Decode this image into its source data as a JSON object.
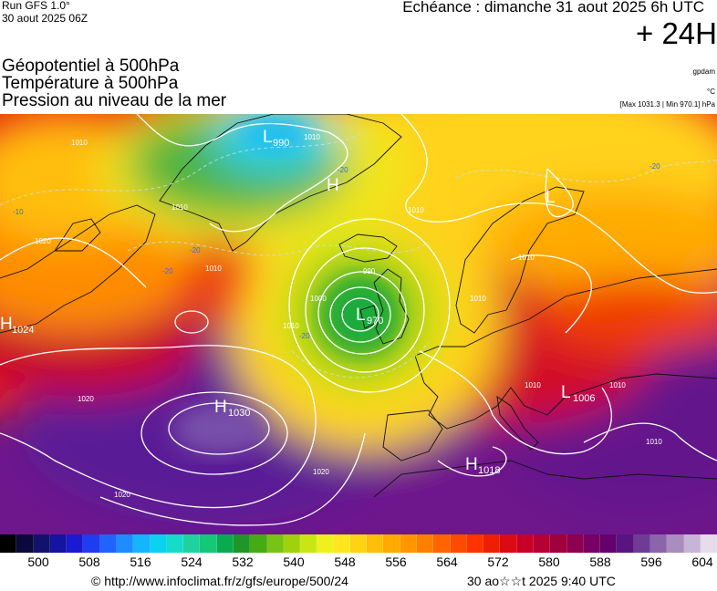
{
  "header": {
    "run": "Run GFS 1.0°",
    "run_date": "30 aout 2025 06Z",
    "echeance": "Echéance : dimanche 31 aout 2025 6h UTC",
    "lead": "+ 24H"
  },
  "titles": {
    "line1": "Géopotentiel à 500hPa",
    "line2": "Température à 500hPa",
    "line3": "Pression au niveau de la mer"
  },
  "units": {
    "geopotential": "gpdam",
    "temperature": "°C",
    "maxmin": "[Max 1031.3 | Min 970.1] hPa"
  },
  "colorbar": {
    "tick_labels": [
      "500",
      "508",
      "516",
      "524",
      "532",
      "540",
      "548",
      "556",
      "564",
      "572",
      "580",
      "588",
      "596",
      "604"
    ],
    "colors": [
      "#000000",
      "#0a0a3a",
      "#12126e",
      "#1414a0",
      "#1a1ad2",
      "#1e3cf0",
      "#2064ff",
      "#1e8cff",
      "#14b4ff",
      "#0ad2f0",
      "#14dcc8",
      "#1ed2a0",
      "#14c878",
      "#0aaa50",
      "#1e9628",
      "#46aa14",
      "#78c314",
      "#a0d20a",
      "#c8e614",
      "#f0f01e",
      "#ffe61e",
      "#ffd214",
      "#ffbe0a",
      "#ffaa00",
      "#ff9600",
      "#ff7f00",
      "#ff6400",
      "#ff4b00",
      "#ff3200",
      "#f01e00",
      "#dc0a14",
      "#c80028",
      "#b40032",
      "#a0003c",
      "#8c0050",
      "#780064",
      "#64006e",
      "#5a1482",
      "#6e3c96",
      "#8c64aa",
      "#aa8cbe",
      "#c8b4d7",
      "#e6dceb"
    ]
  },
  "pressure_systems": [
    {
      "type": "L",
      "value": "990"
    },
    {
      "type": "H",
      "value": ""
    },
    {
      "type": "L",
      "value": "970"
    },
    {
      "type": "H",
      "value": "1024"
    },
    {
      "type": "H",
      "value": "1030"
    },
    {
      "type": "L",
      "value": "1006"
    },
    {
      "type": "H",
      "value": "1018"
    },
    {
      "type": "L",
      "value": ""
    }
  ],
  "isobar_labels": [
    "1010",
    "1010",
    "1010",
    "1020",
    "1010",
    "1010",
    "1010",
    "990",
    "1000",
    "1010",
    "1020",
    "1020",
    "1020",
    "1010",
    "1010",
    "1010",
    "1010"
  ],
  "temperature_labels": [
    "-20",
    "-10",
    "-20",
    "-20",
    "-20",
    "-20"
  ],
  "footer": {
    "credit": "© http://www.infoclimat.fr/z/gfs/europe/500/24",
    "stamp": "30 ao☆☆t 2025  9:40 UTC"
  }
}
